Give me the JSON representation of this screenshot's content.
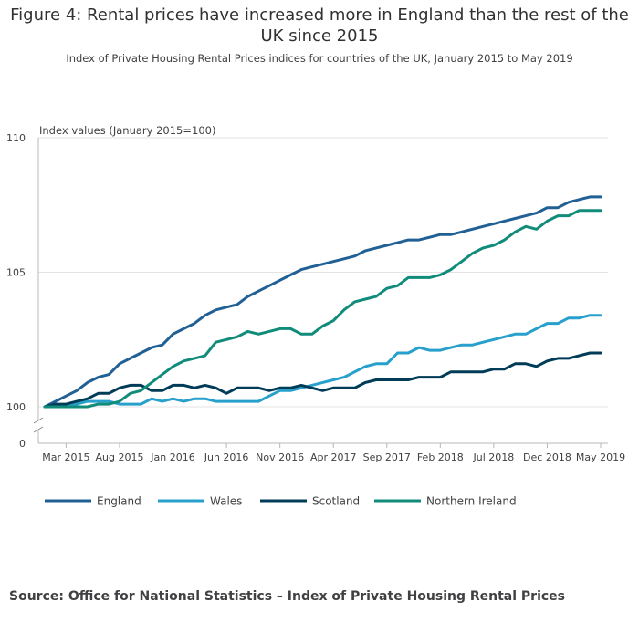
{
  "title": "Figure 4: Rental prices have increased more in England than the rest of the UK since 2015",
  "subtitle": "Index of Private Housing Rental Prices indices for countries of the UK, January 2015 to May 2019",
  "source": "Source: Office for National Statistics – Index of Private Housing Rental Prices",
  "chart_data": {
    "type": "line",
    "title": "Figure 4: Rental prices have increased more in England than the rest of the UK since 2015",
    "ylabel": "Index values (January 2015=100)",
    "xlabel": "",
    "ylim": [
      100,
      110
    ],
    "y_axis_break": true,
    "y_ticks": [
      "110",
      "105",
      "100",
      "0"
    ],
    "x_ticks": [
      "Mar 2015",
      "Aug 2015",
      "Jan 2016",
      "Jun 2016",
      "Nov 2016",
      "Apr 2017",
      "Sep 2017",
      "Feb 2018",
      "Jul 2018",
      "Dec 2018",
      "May 2019"
    ],
    "x_tick_indices": [
      2,
      7,
      12,
      17,
      22,
      27,
      32,
      37,
      42,
      47,
      52
    ],
    "x_start": "Jan 2015",
    "x_end": "May 2019",
    "n_points": 53,
    "grid": true,
    "legend_position": "bottom",
    "series": [
      {
        "name": "England",
        "color": "#206095",
        "values": [
          100.0,
          100.2,
          100.4,
          100.6,
          100.9,
          101.1,
          101.2,
          101.6,
          101.8,
          102.0,
          102.2,
          102.3,
          102.7,
          102.9,
          103.1,
          103.4,
          103.6,
          103.7,
          103.8,
          104.1,
          104.3,
          104.5,
          104.7,
          104.9,
          105.1,
          105.2,
          105.3,
          105.4,
          105.5,
          105.6,
          105.8,
          105.9,
          106.0,
          106.1,
          106.2,
          106.2,
          106.3,
          106.4,
          106.4,
          106.5,
          106.6,
          106.7,
          106.8,
          106.9,
          107.0,
          107.1,
          107.2,
          107.4,
          107.4,
          107.6,
          107.7,
          107.8,
          107.8
        ]
      },
      {
        "name": "Wales",
        "color": "#27a0cc",
        "values": [
          100.0,
          100.0,
          100.0,
          100.1,
          100.2,
          100.2,
          100.2,
          100.1,
          100.1,
          100.1,
          100.3,
          100.2,
          100.3,
          100.2,
          100.3,
          100.3,
          100.2,
          100.2,
          100.2,
          100.2,
          100.2,
          100.4,
          100.6,
          100.6,
          100.7,
          100.8,
          100.9,
          101.0,
          101.1,
          101.3,
          101.5,
          101.6,
          101.6,
          102.0,
          102.0,
          102.2,
          102.1,
          102.1,
          102.2,
          102.3,
          102.3,
          102.4,
          102.5,
          102.6,
          102.7,
          102.7,
          102.9,
          103.1,
          103.1,
          103.3,
          103.3,
          103.4,
          103.4
        ]
      },
      {
        "name": "Scotland",
        "color": "#003c57",
        "values": [
          100.0,
          100.1,
          100.1,
          100.2,
          100.3,
          100.5,
          100.5,
          100.7,
          100.8,
          100.8,
          100.6,
          100.6,
          100.8,
          100.8,
          100.7,
          100.8,
          100.7,
          100.5,
          100.7,
          100.7,
          100.7,
          100.6,
          100.7,
          100.7,
          100.8,
          100.7,
          100.6,
          100.7,
          100.7,
          100.7,
          100.9,
          101.0,
          101.0,
          101.0,
          101.0,
          101.1,
          101.1,
          101.1,
          101.3,
          101.3,
          101.3,
          101.3,
          101.4,
          101.4,
          101.6,
          101.6,
          101.5,
          101.7,
          101.8,
          101.8,
          101.9,
          102.0,
          102.0
        ]
      },
      {
        "name": "Northern Ireland",
        "color": "#118c7b",
        "values": [
          100.0,
          100.0,
          100.0,
          100.0,
          100.0,
          100.1,
          100.1,
          100.2,
          100.5,
          100.6,
          100.9,
          101.2,
          101.5,
          101.7,
          101.8,
          101.9,
          102.4,
          102.5,
          102.6,
          102.8,
          102.7,
          102.8,
          102.9,
          102.9,
          102.7,
          102.7,
          103.0,
          103.2,
          103.6,
          103.9,
          104.0,
          104.1,
          104.4,
          104.5,
          104.8,
          104.8,
          104.8,
          104.9,
          105.1,
          105.4,
          105.7,
          105.9,
          106.0,
          106.2,
          106.5,
          106.7,
          106.6,
          106.9,
          107.1,
          107.1,
          107.3,
          107.3,
          107.3
        ]
      }
    ]
  }
}
